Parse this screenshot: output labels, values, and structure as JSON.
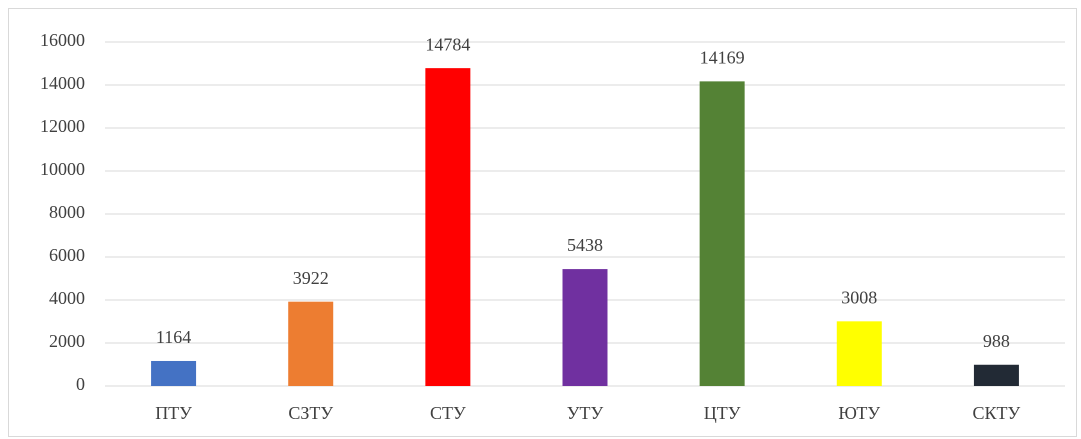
{
  "chart_data": {
    "type": "bar",
    "categories": [
      "ПТУ",
      "СЗТУ",
      "СТУ",
      "УТУ",
      "ЦТУ",
      "ЮТУ",
      "СКТУ"
    ],
    "values": [
      1164,
      3922,
      14784,
      5438,
      14169,
      3008,
      988
    ],
    "colors": [
      "#4472c4",
      "#ed7d31",
      "#ff0000",
      "#7030a0",
      "#548235",
      "#ffff00",
      "#222a35"
    ],
    "ylim": [
      0,
      16000
    ],
    "yticks": [
      0,
      2000,
      4000,
      6000,
      8000,
      10000,
      12000,
      14000,
      16000
    ],
    "grid": true
  }
}
